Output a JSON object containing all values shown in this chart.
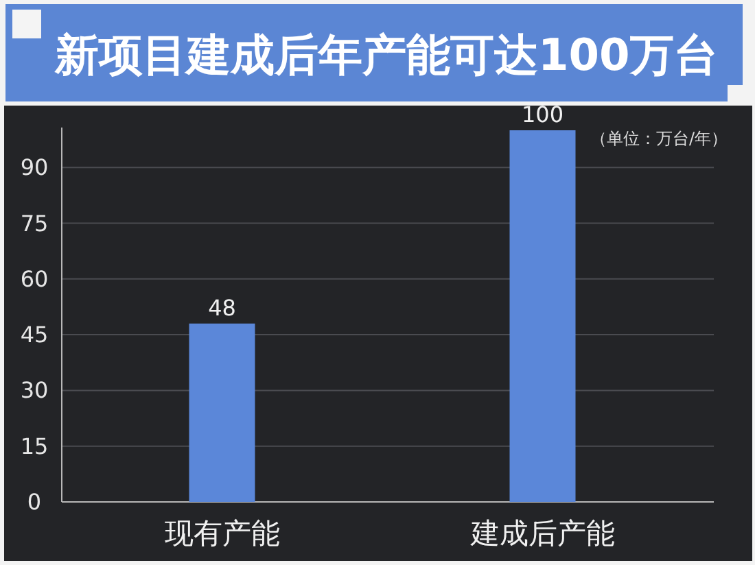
{
  "chart_data": {
    "type": "bar",
    "title": "新项目建成后年产能可达100万台",
    "annotations": [
      "（单位：万台/年）"
    ],
    "categories": [
      "现有产能",
      "建成后产能"
    ],
    "values": [
      48,
      100
    ],
    "color": "#5b87d9",
    "ylim": [
      0,
      100
    ],
    "yticks": [
      0,
      15,
      30,
      45,
      60,
      75,
      90
    ],
    "grid": "y",
    "data_labels": true
  }
}
